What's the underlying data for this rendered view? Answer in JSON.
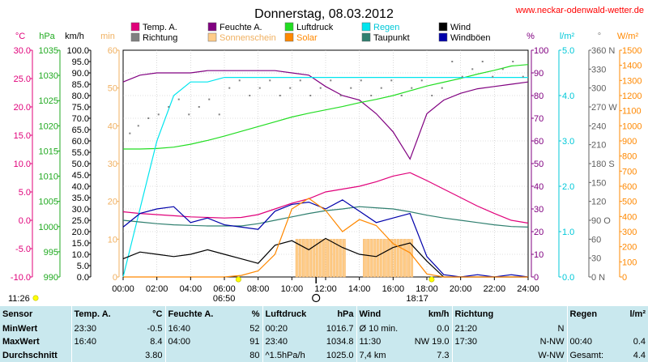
{
  "title": "Donnerstag, 08.03.2012",
  "site": "www.neckar-odenwald-wetter.de",
  "legend": {
    "temp": {
      "label": "Temp. A.",
      "color": "#e0007a"
    },
    "feuchte": {
      "label": "Feuchte A.",
      "color": "#800080"
    },
    "luftdruck": {
      "label": "Luftdruck",
      "color": "#22dd22"
    },
    "regen": {
      "label": "Regen",
      "color": "#00e5ee"
    },
    "wind": {
      "label": "Wind",
      "color": "#000000"
    },
    "richtung": {
      "label": "Richtung",
      "color": "#808080"
    },
    "sonnenschein": {
      "label": "Sonnenschein",
      "color": "#ffcc88"
    },
    "solar": {
      "label": "Solar",
      "color": "#ff8800"
    },
    "taupunkt": {
      "label": "Taupunkt",
      "color": "#2f7f6f"
    },
    "windboeen": {
      "label": "Windböen",
      "color": "#0000aa"
    }
  },
  "axes": {
    "temp_unit": "°C",
    "hpa_unit": "hPa",
    "kmh_unit": "km/h",
    "min_unit": "min",
    "pct_unit": "%",
    "rain_unit": "l/m²",
    "deg_unit": "°",
    "solar_unit": "W/m²",
    "temp_ticks": [
      "30.0",
      "25.0",
      "20.0",
      "15.0",
      "10.0",
      "5.0",
      "0.0",
      "-5.0",
      "-10.0"
    ],
    "hpa_ticks": [
      "1035",
      "1030",
      "1025",
      "1020",
      "1015",
      "1010",
      "1005",
      "1000",
      "995",
      "990"
    ],
    "kmh_ticks": [
      "100.0",
      "95.0",
      "90.0",
      "85.0",
      "80.0",
      "75.0",
      "70.0",
      "65.0",
      "60.0",
      "55.0",
      "50.0",
      "45.0",
      "40.0",
      "35.0",
      "30.0",
      "25.0",
      "20.0",
      "15.0",
      "10.0",
      "5.0",
      "0.0"
    ],
    "min_ticks": [
      "60",
      "50",
      "40",
      "30",
      "20",
      "10",
      "0"
    ],
    "pct_ticks": [
      "100",
      "90",
      "80",
      "70",
      "60",
      "50",
      "40",
      "30",
      "20",
      "10",
      "0"
    ],
    "rain_ticks": [
      "5.0",
      "4.0",
      "3.0",
      "2.0",
      "1.0",
      "0.0"
    ],
    "deg_ticks": [
      "360 N",
      "330",
      "300",
      "270 W",
      "240",
      "210",
      "180 S",
      "150",
      "120",
      "90 O",
      "60",
      "30",
      "0 N"
    ],
    "solar_ticks": [
      "1500",
      "1400",
      "1300",
      "1200",
      "1100",
      "1000",
      "900",
      "800",
      "700",
      "600",
      "500",
      "400",
      "300",
      "200",
      "100",
      "0"
    ],
    "x_ticks": [
      "00:00",
      "02:00",
      "04:00",
      "06:00",
      "08:00",
      "10:00",
      "12:00",
      "14:00",
      "16:00",
      "18:00",
      "20:00",
      "22:00",
      "24:00"
    ]
  },
  "sun": {
    "civil_dawn": "06:50",
    "sunset": "18:17",
    "moonrise": "11:26"
  },
  "chart_data": {
    "type": "line",
    "x": [
      0,
      1,
      2,
      3,
      4,
      5,
      6,
      7,
      8,
      9,
      10,
      11,
      12,
      13,
      14,
      15,
      16,
      17,
      18,
      19,
      20,
      21,
      22,
      23,
      24
    ],
    "series": [
      {
        "name": "Temp. A.",
        "axis": "°C",
        "values": [
          1.5,
          1.2,
          1.0,
          0.8,
          0.6,
          0.5,
          0.4,
          0.5,
          1.0,
          2.0,
          3.0,
          3.8,
          5.0,
          5.5,
          6.0,
          6.8,
          7.8,
          8.4,
          7.0,
          5.5,
          4.0,
          2.5,
          1.2,
          0.0,
          -0.5
        ]
      },
      {
        "name": "Feuchte A.",
        "axis": "%",
        "values": [
          86,
          89,
          90,
          90,
          90,
          91,
          91,
          91,
          91,
          91,
          90,
          89,
          84,
          80,
          78,
          72,
          64,
          52,
          72,
          78,
          81,
          83,
          84,
          85,
          86
        ]
      },
      {
        "name": "Luftdruck",
        "axis": "hPa",
        "values": [
          1016.8,
          1016.8,
          1016.9,
          1017.2,
          1017.8,
          1018.6,
          1019.5,
          1020.5,
          1021.5,
          1022.5,
          1023.5,
          1024.3,
          1025.0,
          1025.7,
          1026.5,
          1027.2,
          1028.0,
          1029.0,
          1030.0,
          1030.8,
          1031.6,
          1032.5,
          1033.3,
          1034.2,
          1034.5
        ]
      },
      {
        "name": "Regen",
        "axis": "l/m²",
        "values": [
          0.0,
          1.5,
          3.0,
          4.0,
          4.3,
          4.3,
          4.4,
          4.4,
          4.4,
          4.4,
          4.4,
          4.4,
          4.4,
          4.4,
          4.4,
          4.4,
          4.4,
          4.4,
          4.4,
          4.4,
          4.4,
          4.4,
          4.4,
          4.4,
          4.4
        ]
      },
      {
        "name": "Taupunkt",
        "axis": "°C",
        "values": [
          0.0,
          -0.3,
          -0.6,
          -0.8,
          -0.9,
          -1.0,
          -1.0,
          -1.0,
          -0.6,
          0.0,
          0.6,
          1.2,
          1.7,
          2.0,
          2.4,
          2.2,
          2.0,
          1.5,
          0.9,
          0.4,
          0.0,
          -0.4,
          -0.8,
          -1.1,
          -1.2
        ]
      },
      {
        "name": "Wind",
        "axis": "km/h",
        "values": [
          8,
          11,
          10,
          9,
          10,
          12,
          10,
          8,
          6,
          14,
          16,
          12,
          17,
          13,
          10,
          9,
          13,
          15,
          7,
          0,
          0,
          0,
          0,
          0,
          0
        ]
      },
      {
        "name": "Windböen",
        "axis": "km/h",
        "values": [
          22,
          28,
          30,
          31,
          24,
          26,
          23,
          22,
          21,
          29,
          32,
          33,
          30,
          34,
          29,
          24,
          26,
          28,
          9,
          1,
          0,
          1,
          0,
          1,
          0
        ]
      },
      {
        "name": "Solar",
        "axis": "W/m²",
        "values": [
          0,
          0,
          0,
          0,
          0,
          0,
          0,
          10,
          40,
          150,
          450,
          520,
          440,
          300,
          380,
          340,
          220,
          160,
          20,
          0,
          0,
          0,
          0,
          0,
          0
        ]
      },
      {
        "name": "Richtung",
        "axis": "°",
        "values": [
          240,
          240,
          270,
          270,
          270,
          270,
          300,
          300,
          300,
          300,
          300,
          300,
          300,
          300,
          300,
          300,
          300,
          300,
          300,
          330,
          330,
          330,
          330,
          330,
          330
        ]
      }
    ],
    "sunshine_blocks_h": [
      10.3,
      10.5,
      10.7,
      10.9,
      11.1,
      11.3,
      11.5,
      11.7,
      11.9,
      12.1,
      12.3,
      12.5,
      12.7,
      12.9,
      13.1,
      14.3,
      14.5,
      14.7,
      14.9,
      15.1,
      15.3,
      15.5,
      15.7,
      15.9,
      16.1,
      16.3,
      16.5,
      16.7,
      16.9,
      17.1
    ],
    "gust_dots_h": [
      0.4,
      0.9,
      1.5,
      2.1,
      2.7,
      3.3,
      3.9,
      4.5,
      5.1,
      5.7,
      6.3,
      6.9,
      7.5,
      8.1,
      8.7,
      9.3,
      9.9,
      10.5,
      11.1,
      11.7,
      12.3,
      12.9,
      13.5,
      14.1,
      14.7,
      15.3,
      15.9,
      16.5,
      17.1,
      17.7,
      18.3,
      18.9,
      19.5,
      20.1,
      20.7,
      21.3,
      21.9,
      22.5,
      23.1,
      23.7
    ],
    "xlim": [
      "00:00",
      "24:00"
    ]
  },
  "stats": {
    "headers": {
      "sensor": "Sensor",
      "temp": "Temp. A.",
      "temp_u": "°C",
      "feuchte": "Feuchte A.",
      "feuchte_u": "%",
      "druck": "Luftdruck",
      "druck_u": "hPa",
      "wind": "Wind",
      "wind_u": "km/h",
      "richtung": "Richtung",
      "regen": "Regen",
      "regen_u": "l/m²"
    },
    "rows": [
      {
        "label": "MinWert",
        "temp_t": "23:30",
        "temp_v": "-0.5",
        "feuchte_t": "16:40",
        "feuchte_v": "52",
        "druck_t": "00:20",
        "druck_v": "1016.7",
        "wind_t": "Ø 10 min.",
        "wind_v": "0.0",
        "richtung_t": "21:20",
        "richtung_v": "N",
        "regen_t": "",
        "regen_v": ""
      },
      {
        "label": "MaxWert",
        "temp_t": "16:40",
        "temp_v": "8.4",
        "feuchte_t": "04:00",
        "feuchte_v": "91",
        "druck_t": "23:40",
        "druck_v": "1034.8",
        "wind_t": "11:30",
        "wind_v": "NW 19.0",
        "richtung_t": "17:30",
        "richtung_v": "N-NW",
        "regen_t": "00:40",
        "regen_v": "0.4"
      },
      {
        "label": "Durchschnitt",
        "temp_t": "",
        "temp_v": "3.80",
        "feuchte_t": "",
        "feuchte_v": "80",
        "druck_t": "^1.5hPa/h",
        "druck_v": "1025.0",
        "wind_t": "7,4 km",
        "wind_v": "7.3",
        "richtung_t": "",
        "richtung_v": "W-NW",
        "regen_t": "Gesamt:",
        "regen_v": "4.4"
      }
    ]
  }
}
